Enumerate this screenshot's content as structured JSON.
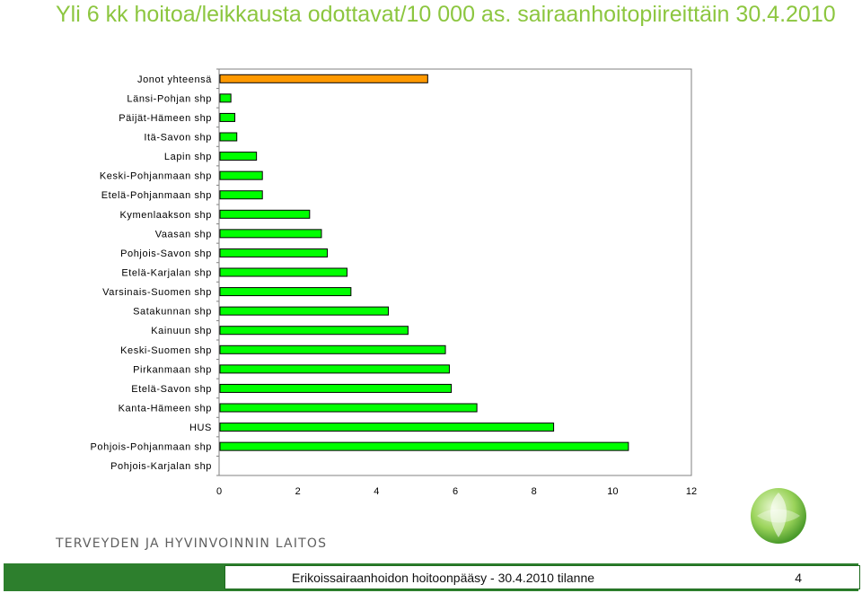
{
  "slide": {
    "title": "Yli 6 kk hoitoa/leikkausta odottavat/10 000 as. sairaanhoitopiireittäin 30.4.2010",
    "organization": "TERVEYDEN JA HYVINVOINNIN LAITOS",
    "footer_text": "Erikoissairaanhoidon hoitoonpääsy - 30.4.2010 tilanne",
    "page_number": "4"
  },
  "colors": {
    "title": "#8cc63f",
    "bar_default": "#00ff00",
    "bar_highlight": "#ff9900",
    "footer_band": "#2d7f2d"
  },
  "chart_data": {
    "type": "bar",
    "orientation": "horizontal",
    "categories": [
      "Jonot yhteensä",
      "Länsi-Pohjan shp",
      "Päijät-Hämeen shp",
      "Itä-Savon shp",
      "Lapin shp",
      "Keski-Pohjanmaan shp",
      "Etelä-Pohjanmaan shp",
      "Kymenlaakson shp",
      "Vaasan shp",
      "Pohjois-Savon shp",
      "Etelä-Karjalan shp",
      "Varsinais-Suomen shp",
      "Satakunnan shp",
      "Kainuun shp",
      "Keski-Suomen shp",
      "Pirkanmaan shp",
      "Etelä-Savon shp",
      "Kanta-Hämeen shp",
      "HUS",
      "Pohjois-Pohjanmaan shp",
      "Pohjois-Karjalan shp"
    ],
    "values": [
      5.3,
      0.3,
      0.4,
      0.45,
      0.95,
      1.1,
      1.1,
      2.3,
      2.6,
      2.75,
      3.25,
      3.35,
      4.3,
      4.8,
      5.75,
      5.85,
      5.9,
      6.55,
      8.5,
      10.4,
      0
    ],
    "highlight_index": 0,
    "xlim": [
      0,
      12
    ],
    "xticks": [
      0,
      2,
      4,
      6,
      8,
      10,
      12
    ],
    "title": "",
    "xlabel": "",
    "ylabel": "",
    "grid": false
  }
}
